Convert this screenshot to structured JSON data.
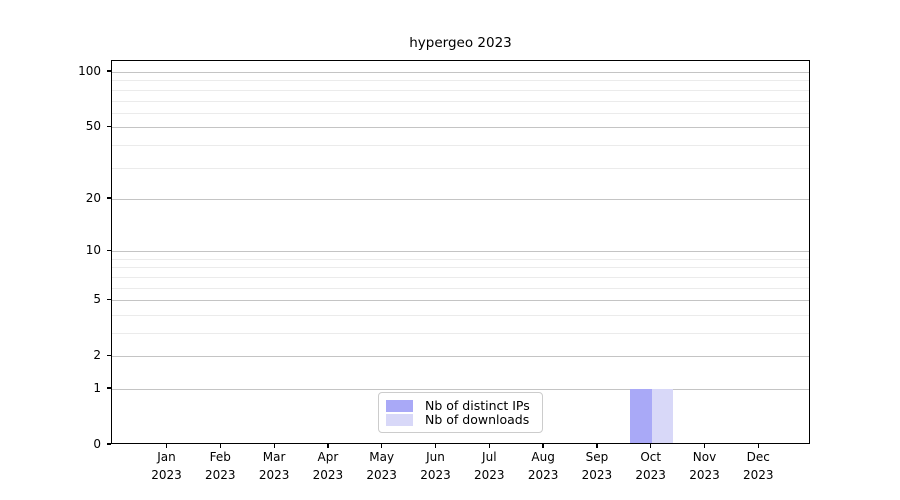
{
  "chart_data": {
    "type": "bar",
    "title": "hypergeo 2023",
    "categories": [
      "Jan 2023",
      "Feb 2023",
      "Mar 2023",
      "Apr 2023",
      "May 2023",
      "Jun 2023",
      "Jul 2023",
      "Aug 2023",
      "Sep 2023",
      "Oct 2023",
      "Nov 2023",
      "Dec 2023"
    ],
    "series": [
      {
        "name": "Nb of distinct IPs",
        "color": "#a9a9f7",
        "values": [
          0,
          0,
          0,
          0,
          0,
          0,
          0,
          0,
          0,
          1,
          0,
          0
        ]
      },
      {
        "name": "Nb of downloads",
        "color": "#d8d8f8",
        "values": [
          0,
          0,
          0,
          0,
          0,
          0,
          0,
          0,
          0,
          1,
          0,
          0
        ]
      }
    ],
    "xlabel": "",
    "ylabel": "",
    "y_scale": "log10(1+y)",
    "y_tick_values": [
      100,
      50,
      20,
      10,
      5,
      2,
      1,
      0
    ],
    "ylim": [
      0,
      115
    ],
    "grid": "horizontal major and minor gridlines",
    "legend_position": "bottom-center inside plot",
    "colors": {
      "axis": "#000000",
      "major_grid": "#c4c4c4",
      "minor_grid": "#ebebeb",
      "background": "#ffffff"
    }
  }
}
